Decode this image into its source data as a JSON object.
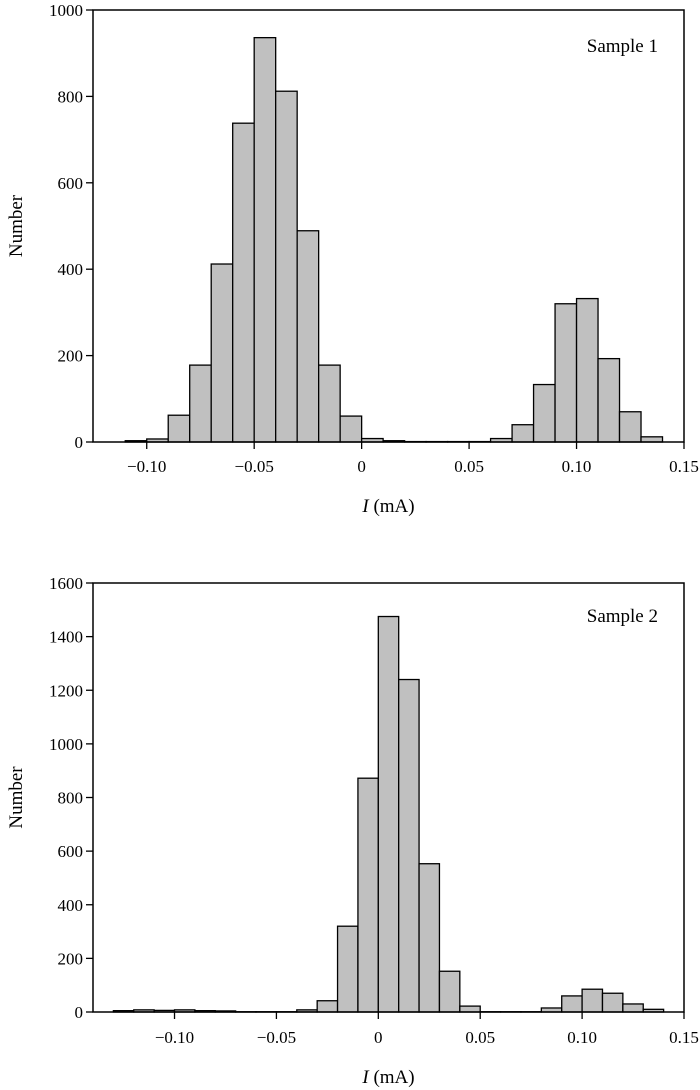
{
  "chart_data": [
    {
      "type": "bar",
      "annotation": "Sample 1",
      "xlabel_italic": "I",
      "xlabel_unit": " (mA)",
      "ylabel": "Number",
      "xlim": [
        -0.125,
        0.15
      ],
      "ylim": [
        0,
        1000
      ],
      "bin_width": 0.01,
      "bin_start": -0.11,
      "values": [
        3,
        7,
        62,
        178,
        412,
        738,
        936,
        812,
        489,
        178,
        60,
        8,
        3,
        1,
        1,
        1,
        1,
        8,
        40,
        133,
        320,
        332,
        193,
        70,
        12
      ],
      "x_ticks": [
        -0.1,
        -0.05,
        0,
        0.05,
        0.1,
        0.15
      ],
      "x_tick_labels": [
        "−0.10",
        "−0.05",
        "0",
        "0.05",
        "0.10",
        "0.15"
      ],
      "y_ticks": [
        0,
        200,
        400,
        600,
        800,
        1000
      ],
      "y_tick_labels": [
        "0",
        "200",
        "400",
        "600",
        "800",
        "1000"
      ]
    },
    {
      "type": "bar",
      "annotation": "Sample 2",
      "xlabel_italic": "I",
      "xlabel_unit": " (mA)",
      "ylabel": "Number",
      "xlim": [
        -0.14,
        0.15
      ],
      "ylim": [
        0,
        1600
      ],
      "bin_width": 0.01,
      "bin_start": -0.13,
      "values": [
        5,
        8,
        6,
        8,
        5,
        4,
        1,
        1,
        1,
        8,
        42,
        320,
        872,
        1475,
        1240,
        553,
        152,
        22,
        1,
        1,
        1,
        15,
        60,
        85,
        70,
        30,
        10
      ],
      "x_ticks": [
        -0.1,
        -0.05,
        0,
        0.05,
        0.1,
        0.15
      ],
      "x_tick_labels": [
        "−0.10",
        "−0.05",
        "0",
        "0.05",
        "0.10",
        "0.15"
      ],
      "y_ticks": [
        0,
        200,
        400,
        600,
        800,
        1000,
        1200,
        1400,
        1600
      ],
      "y_tick_labels": [
        "0",
        "200",
        "400",
        "600",
        "800",
        "1000",
        "1200",
        "1400",
        "1600"
      ]
    }
  ]
}
